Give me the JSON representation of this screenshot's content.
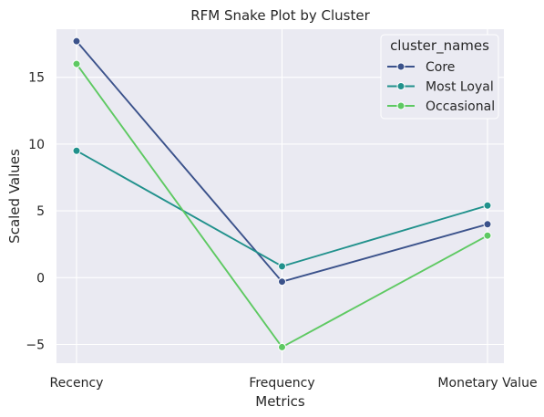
{
  "chart_data": {
    "type": "line",
    "title": "RFM Snake Plot by Cluster",
    "xlabel": "Metrics",
    "ylabel": "Scaled Values",
    "categories": [
      "Recency",
      "Frequency",
      "Monetary Value"
    ],
    "yticks": [
      -5,
      0,
      5,
      10,
      15
    ],
    "ytick_labels": [
      "−5",
      "0",
      "5",
      "10",
      "15"
    ],
    "ylim": [
      -6.4,
      18.6
    ],
    "grid": true,
    "legend": {
      "title": "cluster_names",
      "placement": "top-right"
    },
    "series": [
      {
        "name": "Core",
        "color": "#3b528b",
        "values": [
          17.7,
          -0.3,
          4.0
        ]
      },
      {
        "name": "Most Loyal",
        "color": "#21918c",
        "values": [
          9.5,
          0.85,
          5.4
        ]
      },
      {
        "name": "Occasional",
        "color": "#5ec962",
        "values": [
          16.0,
          -5.2,
          3.15
        ]
      }
    ]
  }
}
